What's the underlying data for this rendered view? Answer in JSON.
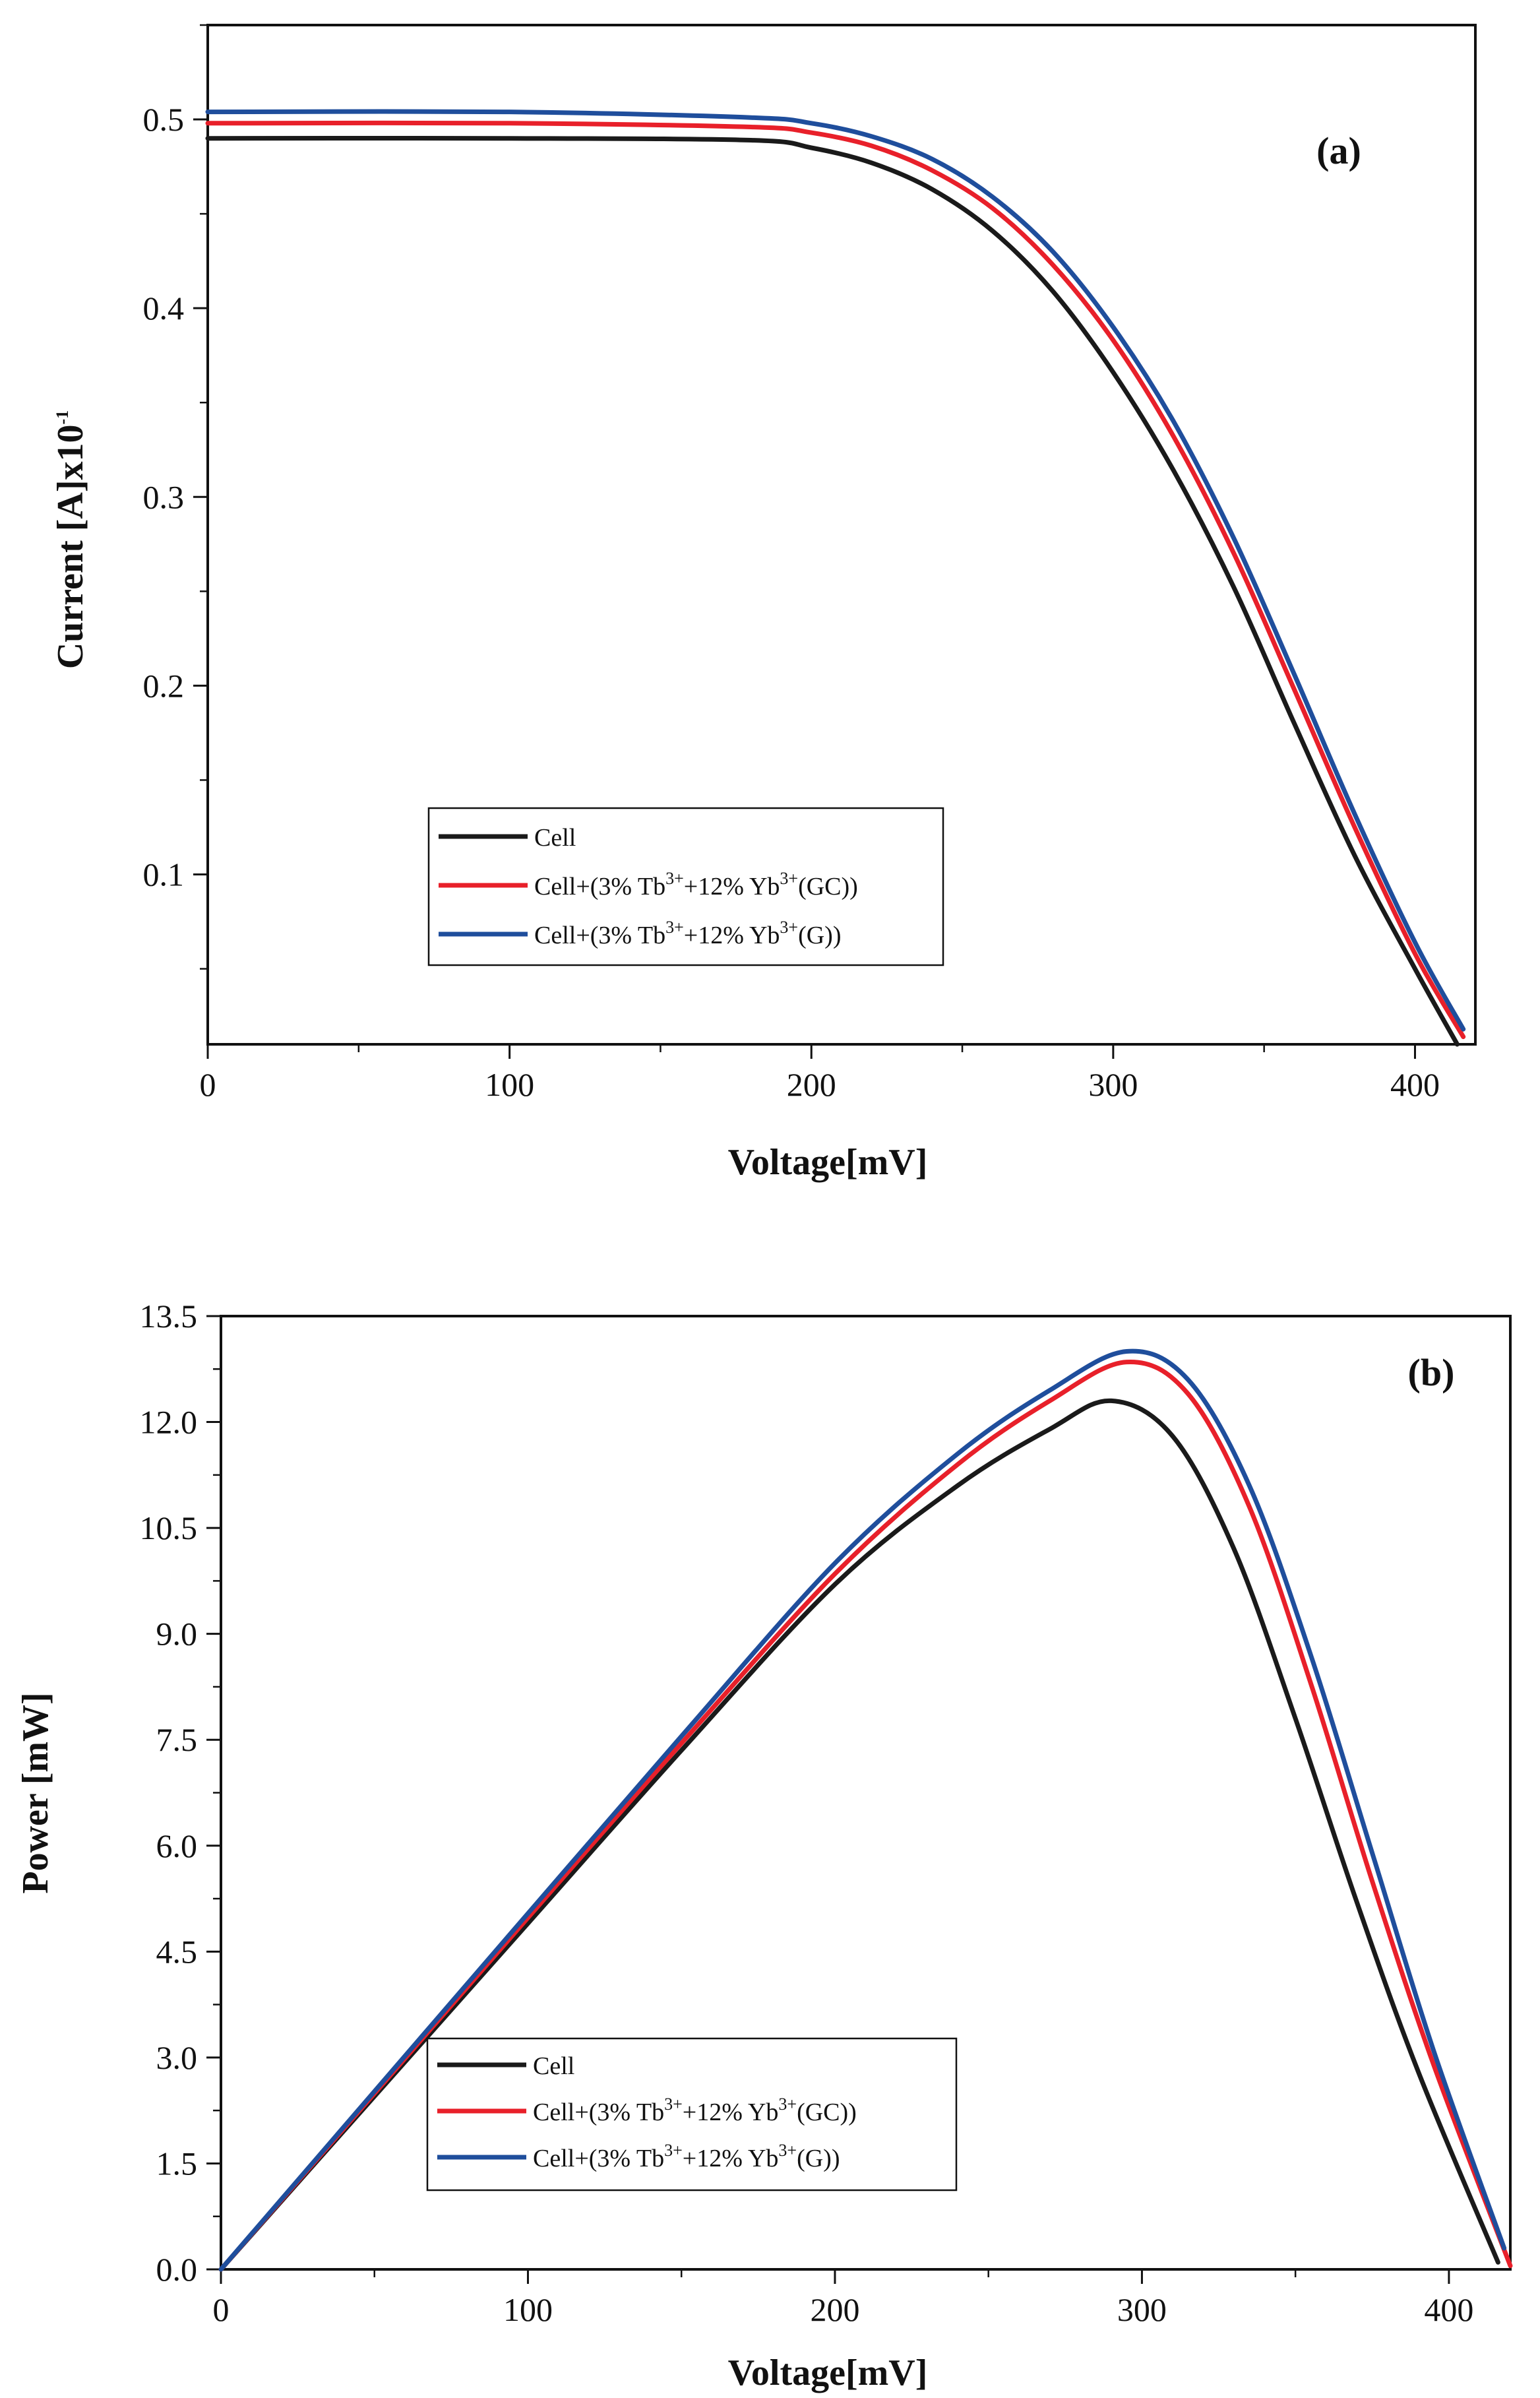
{
  "chart_data": [
    {
      "type": "line",
      "panel_label": "(a)",
      "title": "",
      "xlabel": "Voltage[mV]",
      "ylabel_main": "Current [A]x10",
      "ylabel_sup": "-1",
      "xlim": [
        0,
        420
      ],
      "ylim": [
        0.01,
        0.55
      ],
      "xticks": [
        0,
        100,
        200,
        300,
        400
      ],
      "yticks": [
        0.1,
        0.2,
        0.3,
        0.4,
        0.5
      ],
      "xtick_labels": [
        "0",
        "100",
        "200",
        "300",
        "400"
      ],
      "ytick_labels": [
        "0.1",
        "0.2",
        "0.3",
        "0.4",
        "0.5"
      ],
      "legend_position": "bottom-left",
      "series": [
        {
          "name": "Cell",
          "color": "#1a1a1a",
          "legend": {
            "pre": "Cell",
            "tb": "",
            "mid": "",
            "yb": "",
            "post": ""
          },
          "x": [
            0,
            100,
            180,
            200,
            220,
            240,
            260,
            280,
            300,
            320,
            340,
            360,
            380,
            400,
            414
          ],
          "y": [
            0.49,
            0.49,
            0.489,
            0.485,
            0.477,
            0.463,
            0.441,
            0.409,
            0.366,
            0.314,
            0.252,
            0.18,
            0.11,
            0.05,
            0.01
          ]
        },
        {
          "name": "Cell+(3% Tb3++12% Yb3+(GC))",
          "color": "#e8202a",
          "legend": {
            "pre": "Cell+(3% Tb",
            "tb": "3+",
            "mid": "+12% Yb",
            "yb": "3+",
            "post": "(GC))"
          },
          "x": [
            0,
            100,
            180,
            200,
            220,
            240,
            260,
            280,
            300,
            320,
            340,
            360,
            380,
            400,
            416
          ],
          "y": [
            0.498,
            0.498,
            0.496,
            0.493,
            0.486,
            0.473,
            0.453,
            0.423,
            0.383,
            0.332,
            0.27,
            0.198,
            0.125,
            0.058,
            0.014
          ]
        },
        {
          "name": "Cell+(3% Tb3++12% Yb3+(G))",
          "color": "#1f4e9c",
          "legend": {
            "pre": "Cell+(3% Tb",
            "tb": "3+",
            "mid": "+12% Yb",
            "yb": "3+",
            "post": "(G))"
          },
          "x": [
            0,
            100,
            180,
            200,
            220,
            240,
            260,
            280,
            300,
            320,
            340,
            360,
            380,
            400,
            416
          ],
          "y": [
            0.504,
            0.504,
            0.501,
            0.498,
            0.491,
            0.479,
            0.459,
            0.43,
            0.39,
            0.34,
            0.278,
            0.206,
            0.132,
            0.064,
            0.018
          ]
        }
      ]
    },
    {
      "type": "line",
      "panel_label": "(b)",
      "title": "",
      "xlabel": "Voltage[mV]",
      "ylabel_main": "Power [mW]",
      "ylabel_sup": "",
      "xlim": [
        0,
        420
      ],
      "ylim": [
        0,
        13.5
      ],
      "xticks": [
        0,
        100,
        200,
        300,
        400
      ],
      "yticks": [
        0,
        1.5,
        3,
        4.5,
        6,
        7.5,
        9,
        10.5,
        12,
        13.5
      ],
      "xtick_labels": [
        "0",
        "100",
        "200",
        "300",
        "400"
      ],
      "ytick_labels": [
        "0.0",
        "1.5",
        "3.0",
        "4.5",
        "6.0",
        "7.5",
        "9.0",
        "10.5",
        "12.0",
        "13.5"
      ],
      "legend_position": "bottom-left",
      "series": [
        {
          "name": "Cell",
          "color": "#1a1a1a",
          "legend": {
            "pre": "Cell",
            "tb": "",
            "mid": "",
            "yb": "",
            "post": ""
          },
          "x": [
            0,
            50,
            100,
            150,
            200,
            240,
            270,
            290,
            310,
            330,
            350,
            370,
            390,
            416
          ],
          "y": [
            0,
            2.45,
            4.9,
            7.35,
            9.7,
            11.1,
            11.9,
            12.3,
            11.8,
            10.2,
            7.8,
            5.2,
            2.8,
            0.1
          ]
        },
        {
          "name": "Cell+(3% Tb3++12% Yb3+(GC))",
          "color": "#e8202a",
          "legend": {
            "pre": "Cell+(3% Tb",
            "tb": "3+",
            "mid": "+12% Yb",
            "yb": "3+",
            "post": "(GC))"
          },
          "x": [
            0,
            50,
            100,
            150,
            200,
            240,
            270,
            295,
            315,
            335,
            355,
            375,
            395,
            420
          ],
          "y": [
            0,
            2.49,
            4.98,
            7.45,
            9.85,
            11.4,
            12.3,
            12.85,
            12.4,
            10.8,
            8.3,
            5.5,
            2.9,
            0.05
          ]
        },
        {
          "name": "Cell+(3% Tb3++12% Yb3+(G))",
          "color": "#1f4e9c",
          "legend": {
            "pre": "Cell+(3% Tb",
            "tb": "3+",
            "mid": "+12% Yb",
            "yb": "3+",
            "post": "(G))"
          },
          "x": [
            0,
            50,
            100,
            150,
            200,
            240,
            270,
            295,
            315,
            335,
            355,
            375,
            395,
            418
          ],
          "y": [
            0,
            2.52,
            5.04,
            7.55,
            10.0,
            11.55,
            12.45,
            13.0,
            12.6,
            11.1,
            8.7,
            5.9,
            3.1,
            0.3
          ]
        }
      ]
    }
  ]
}
